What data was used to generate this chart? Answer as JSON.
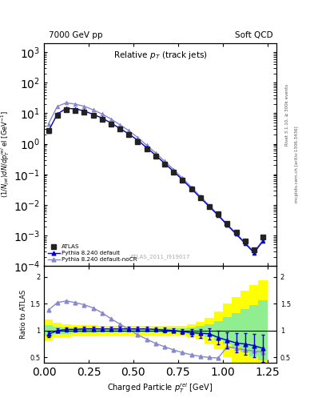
{
  "title_left": "7000 GeV pp",
  "title_right": "Soft QCD",
  "plot_title": "Relative p$_{T}$ (track jets)",
  "xlabel": "Charged Particle $\\mathit{p}^{rel}_{T}$ [GeV]",
  "ylabel_main": "(1/Njet)dN/dp$^{rel}_{T}$ el [GeV$^{-1}$]",
  "ylabel_ratio": "Ratio to ATLAS",
  "right_label_1": "Rivet 3.1.10, ≥ 300k events",
  "right_label_2": "mcplots.cern.ch [arXiv:1306.3436]",
  "analysis_label": "ATLAS_2011_I919017",
  "x_data": [
    0.025,
    0.075,
    0.125,
    0.175,
    0.225,
    0.275,
    0.325,
    0.375,
    0.425,
    0.475,
    0.525,
    0.575,
    0.625,
    0.675,
    0.725,
    0.775,
    0.825,
    0.875,
    0.925,
    0.975,
    1.025,
    1.075,
    1.125,
    1.175,
    1.225
  ],
  "atlas_y": [
    2.8,
    8.5,
    13.0,
    12.5,
    11.0,
    8.5,
    6.5,
    4.5,
    3.0,
    2.0,
    1.2,
    0.7,
    0.4,
    0.22,
    0.12,
    0.065,
    0.033,
    0.017,
    0.009,
    0.005,
    0.0025,
    0.0013,
    0.00065,
    0.00033,
    0.0009
  ],
  "atlas_yerr": [
    0.15,
    0.4,
    0.6,
    0.5,
    0.45,
    0.35,
    0.28,
    0.2,
    0.14,
    0.095,
    0.06,
    0.035,
    0.02,
    0.012,
    0.007,
    0.004,
    0.002,
    0.001,
    0.0006,
    0.0003,
    0.00015,
    8e-05,
    4e-05,
    2e-05,
    0.00012
  ],
  "pythia_default_y": [
    2.6,
    9.5,
    14.5,
    14.0,
    12.0,
    9.2,
    7.0,
    4.8,
    3.2,
    2.1,
    1.3,
    0.75,
    0.42,
    0.23,
    0.125,
    0.066,
    0.034,
    0.017,
    0.0088,
    0.0045,
    0.0022,
    0.0011,
    0.00055,
    0.00027,
    0.00065
  ],
  "pythia_nocr_y": [
    4.5,
    17.0,
    22.0,
    20.0,
    17.0,
    13.0,
    9.5,
    6.5,
    4.2,
    2.7,
    1.6,
    0.9,
    0.5,
    0.27,
    0.145,
    0.075,
    0.038,
    0.019,
    0.0095,
    0.0048,
    0.0023,
    0.0012,
    0.00058,
    0.00029,
    0.0007
  ],
  "ratio_default_y": [
    0.93,
    1.0,
    1.02,
    1.02,
    1.03,
    1.03,
    1.03,
    1.03,
    1.03,
    1.03,
    1.03,
    1.03,
    1.02,
    1.01,
    1.0,
    0.98,
    0.96,
    0.95,
    0.94,
    0.87,
    0.82,
    0.77,
    0.75,
    0.72,
    0.67
  ],
  "ratio_default_yerr": [
    0.05,
    0.04,
    0.04,
    0.04,
    0.04,
    0.04,
    0.04,
    0.04,
    0.04,
    0.04,
    0.04,
    0.04,
    0.04,
    0.04,
    0.04,
    0.05,
    0.06,
    0.08,
    0.1,
    0.12,
    0.15,
    0.18,
    0.2,
    0.22,
    0.25
  ],
  "ratio_nocr_y": [
    1.38,
    1.52,
    1.55,
    1.52,
    1.48,
    1.42,
    1.33,
    1.22,
    1.12,
    1.02,
    0.92,
    0.84,
    0.76,
    0.7,
    0.64,
    0.59,
    0.55,
    0.52,
    0.5,
    0.49,
    0.7,
    0.67,
    0.64,
    0.62,
    0.6
  ],
  "band_x_edges": [
    0.0,
    0.05,
    0.1,
    0.15,
    0.2,
    0.25,
    0.3,
    0.35,
    0.4,
    0.45,
    0.5,
    0.55,
    0.6,
    0.65,
    0.7,
    0.75,
    0.8,
    0.85,
    0.9,
    0.95,
    1.0,
    1.05,
    1.1,
    1.15,
    1.2,
    1.25
  ],
  "green_band_low": [
    0.9,
    0.93,
    0.94,
    0.95,
    0.95,
    0.95,
    0.96,
    0.96,
    0.96,
    0.96,
    0.96,
    0.96,
    0.96,
    0.96,
    0.96,
    0.96,
    0.94,
    0.92,
    0.88,
    0.82,
    0.75,
    0.68,
    0.6,
    0.52,
    0.44
  ],
  "green_band_high": [
    1.1,
    1.07,
    1.06,
    1.05,
    1.05,
    1.05,
    1.04,
    1.04,
    1.04,
    1.04,
    1.04,
    1.04,
    1.04,
    1.04,
    1.04,
    1.04,
    1.06,
    1.08,
    1.12,
    1.18,
    1.25,
    1.32,
    1.4,
    1.48,
    1.56
  ],
  "yellow_band_low": [
    0.8,
    0.86,
    0.88,
    0.9,
    0.9,
    0.9,
    0.91,
    0.91,
    0.91,
    0.91,
    0.91,
    0.91,
    0.91,
    0.91,
    0.91,
    0.91,
    0.88,
    0.84,
    0.76,
    0.65,
    0.5,
    0.38,
    0.26,
    0.16,
    0.07
  ],
  "yellow_band_high": [
    1.2,
    1.14,
    1.12,
    1.1,
    1.1,
    1.1,
    1.09,
    1.09,
    1.09,
    1.09,
    1.09,
    1.09,
    1.09,
    1.09,
    1.09,
    1.09,
    1.12,
    1.16,
    1.24,
    1.35,
    1.5,
    1.62,
    1.74,
    1.84,
    1.93
  ],
  "atlas_color": "#222222",
  "pythia_default_color": "#0000cc",
  "pythia_nocr_color": "#8888cc",
  "xlim": [
    0.0,
    1.3
  ],
  "ylim_main": [
    0.0001,
    2000
  ],
  "ylim_ratio": [
    0.4,
    2.2
  ],
  "ratio_yticks": [
    0.5,
    1.0,
    1.5,
    2.0
  ]
}
